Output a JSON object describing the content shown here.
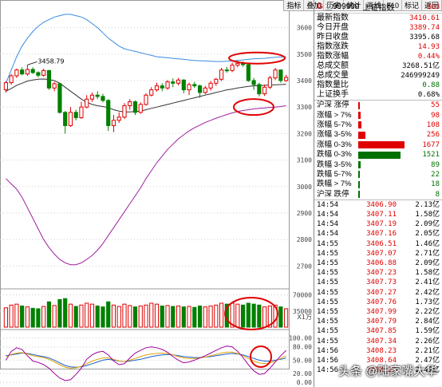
{
  "toolbar": [
    "指标",
    "叠加",
    "历史",
    "统计",
    "画线",
    "F10",
    "标记",
    "返回"
  ],
  "index_header": {
    "flag": "G",
    "sep": "三",
    "code": "999999",
    "name": "上证指数",
    "badge": "$G3"
  },
  "summary": [
    {
      "label": "最新指数",
      "value": "3410.61",
      "color": "red"
    },
    {
      "label": "今日开盘",
      "value": "3389.74",
      "color": "red"
    },
    {
      "label": "昨日收盘",
      "value": "3395.68",
      "color": "black"
    },
    {
      "label": "指数涨跌",
      "value": "14.93",
      "color": "red"
    },
    {
      "label": "指数涨幅",
      "value": "0.44%",
      "color": "red"
    },
    {
      "label": "总成交额",
      "value": "3268.51亿",
      "color": "black"
    },
    {
      "label": "总成交量",
      "value": "246999249",
      "color": "black"
    },
    {
      "label": "指数量比",
      "value": "0.88",
      "color": "green"
    },
    {
      "label": "上证换手",
      "value": "0.68%",
      "color": "black"
    }
  ],
  "distribution": [
    {
      "label": "沪深 涨停",
      "count": 55,
      "color": "#e00000"
    },
    {
      "label": "涨幅 > 7%",
      "count": 98,
      "color": "#e00000"
    },
    {
      "label": "涨幅 5-7%",
      "count": 108,
      "color": "#e00000"
    },
    {
      "label": "涨幅 3-5%",
      "count": 256,
      "color": "#e00000"
    },
    {
      "label": "涨幅 0-3%",
      "count": 1677,
      "color": "#e00000"
    },
    {
      "label": "跌幅 0-3%",
      "count": 1521,
      "color": "#007000"
    },
    {
      "label": "跌幅 3-5%",
      "count": 89,
      "color": "#007000"
    },
    {
      "label": "跌幅 5-7%",
      "count": 22,
      "color": "#007000"
    },
    {
      "label": "跌幅 > 7%",
      "count": 18,
      "color": "#007000"
    },
    {
      "label": "沪深 跌停",
      "count": 8,
      "color": "#007000"
    }
  ],
  "ticks": [
    {
      "time": "14:54",
      "price": "3406.90",
      "vol": "2.13亿"
    },
    {
      "time": "14:54",
      "price": "3407.11",
      "vol": "1.58亿"
    },
    {
      "time": "14:54",
      "price": "3407.19",
      "vol": "2.09亿"
    },
    {
      "time": "14:54",
      "price": "3407.16",
      "vol": "2.05亿"
    },
    {
      "time": "14:55",
      "price": "3406.51",
      "vol": "1.46亿"
    },
    {
      "time": "14:55",
      "price": "3407.07",
      "vol": "2.71亿"
    },
    {
      "time": "14:55",
      "price": "3406.88",
      "vol": "2.09亿"
    },
    {
      "time": "14:55",
      "price": "3407.23",
      "vol": "1.58亿"
    },
    {
      "time": "14:55",
      "price": "3407.73",
      "vol": "2.41亿"
    },
    {
      "time": "14:55",
      "price": "3407.27",
      "vol": "2.42亿"
    },
    {
      "time": "14:55",
      "price": "3407.76",
      "vol": "1.73亿"
    },
    {
      "time": "14:55",
      "price": "3407.99",
      "vol": "2.22亿"
    },
    {
      "time": "14:55",
      "price": "3407.79",
      "vol": "2.84亿"
    },
    {
      "time": "14:55",
      "price": "3407.85",
      "vol": "1.59亿"
    },
    {
      "time": "14:55",
      "price": "3407.34",
      "vol": "2.26亿"
    },
    {
      "time": "14:56",
      "price": "3408.23",
      "vol": "2.21亿"
    },
    {
      "time": "14:56",
      "price": "3408.64",
      "vol": "2.47亿"
    },
    {
      "time": "14:56",
      "price": "3408.23",
      "vol": "2.47亿"
    }
  ],
  "chart_data": [
    {
      "type": "candlestick",
      "title": "",
      "y_ticks": [
        2700,
        2800,
        2900,
        3000,
        3100,
        3200,
        3300,
        3400,
        3500,
        3600
      ],
      "ylim": [
        2650,
        3680
      ],
      "annotation": "3458.79",
      "candles": [
        {
          "o": 3365,
          "c": 3392,
          "h": 3398,
          "l": 3355,
          "up": true
        },
        {
          "o": 3392,
          "c": 3418,
          "h": 3425,
          "l": 3385,
          "up": true
        },
        {
          "o": 3418,
          "c": 3440,
          "h": 3445,
          "l": 3410,
          "up": true
        },
        {
          "o": 3440,
          "c": 3425,
          "h": 3450,
          "l": 3420,
          "up": false
        },
        {
          "o": 3425,
          "c": 3442,
          "h": 3459,
          "l": 3418,
          "up": true
        },
        {
          "o": 3442,
          "c": 3430,
          "h": 3450,
          "l": 3425,
          "up": false
        },
        {
          "o": 3430,
          "c": 3420,
          "h": 3435,
          "l": 3412,
          "up": false
        },
        {
          "o": 3420,
          "c": 3438,
          "h": 3445,
          "l": 3415,
          "up": true
        },
        {
          "o": 3438,
          "c": 3372,
          "h": 3440,
          "l": 3365,
          "up": false
        },
        {
          "o": 3372,
          "c": 3388,
          "h": 3395,
          "l": 3360,
          "up": true
        },
        {
          "o": 3388,
          "c": 3280,
          "h": 3392,
          "l": 3275,
          "up": false
        },
        {
          "o": 3280,
          "c": 3230,
          "h": 3285,
          "l": 3200,
          "up": false
        },
        {
          "o": 3230,
          "c": 3280,
          "h": 3300,
          "l": 3225,
          "up": true
        },
        {
          "o": 3280,
          "c": 3260,
          "h": 3290,
          "l": 3250,
          "up": false
        },
        {
          "o": 3260,
          "c": 3300,
          "h": 3320,
          "l": 3255,
          "up": true
        },
        {
          "o": 3300,
          "c": 3330,
          "h": 3345,
          "l": 3295,
          "up": true
        },
        {
          "o": 3330,
          "c": 3345,
          "h": 3355,
          "l": 3320,
          "up": true
        },
        {
          "o": 3345,
          "c": 3340,
          "h": 3360,
          "l": 3330,
          "up": false
        },
        {
          "o": 3340,
          "c": 3325,
          "h": 3350,
          "l": 3318,
          "up": false
        },
        {
          "o": 3325,
          "c": 3230,
          "h": 3330,
          "l": 3210,
          "up": false
        },
        {
          "o": 3230,
          "c": 3250,
          "h": 3270,
          "l": 3205,
          "up": true
        },
        {
          "o": 3250,
          "c": 3262,
          "h": 3280,
          "l": 3240,
          "up": true
        },
        {
          "o": 3262,
          "c": 3305,
          "h": 3315,
          "l": 3255,
          "up": true
        },
        {
          "o": 3305,
          "c": 3320,
          "h": 3330,
          "l": 3290,
          "up": true
        },
        {
          "o": 3320,
          "c": 3280,
          "h": 3325,
          "l": 3270,
          "up": false
        },
        {
          "o": 3280,
          "c": 3310,
          "h": 3318,
          "l": 3275,
          "up": true
        },
        {
          "o": 3310,
          "c": 3345,
          "h": 3352,
          "l": 3305,
          "up": true
        },
        {
          "o": 3345,
          "c": 3365,
          "h": 3375,
          "l": 3340,
          "up": true
        },
        {
          "o": 3365,
          "c": 3380,
          "h": 3392,
          "l": 3358,
          "up": true
        },
        {
          "o": 3380,
          "c": 3372,
          "h": 3390,
          "l": 3360,
          "up": false
        },
        {
          "o": 3372,
          "c": 3395,
          "h": 3402,
          "l": 3365,
          "up": true
        },
        {
          "o": 3395,
          "c": 3390,
          "h": 3408,
          "l": 3375,
          "up": false
        },
        {
          "o": 3390,
          "c": 3402,
          "h": 3410,
          "l": 3382,
          "up": true
        },
        {
          "o": 3402,
          "c": 3365,
          "h": 3405,
          "l": 3352,
          "up": false
        },
        {
          "o": 3365,
          "c": 3385,
          "h": 3392,
          "l": 3345,
          "up": true
        },
        {
          "o": 3385,
          "c": 3380,
          "h": 3395,
          "l": 3372,
          "up": false
        },
        {
          "o": 3380,
          "c": 3355,
          "h": 3385,
          "l": 3335,
          "up": false
        },
        {
          "o": 3355,
          "c": 3372,
          "h": 3380,
          "l": 3348,
          "up": true
        },
        {
          "o": 3372,
          "c": 3390,
          "h": 3398,
          "l": 3362,
          "up": true
        },
        {
          "o": 3390,
          "c": 3405,
          "h": 3410,
          "l": 3380,
          "up": true
        },
        {
          "o": 3405,
          "c": 3440,
          "h": 3448,
          "l": 3398,
          "up": true
        },
        {
          "o": 3440,
          "c": 3438,
          "h": 3452,
          "l": 3430,
          "up": false
        },
        {
          "o": 3438,
          "c": 3458,
          "h": 3468,
          "l": 3432,
          "up": true
        },
        {
          "o": 3458,
          "c": 3465,
          "h": 3475,
          "l": 3450,
          "up": true
        },
        {
          "o": 3465,
          "c": 3460,
          "h": 3472,
          "l": 3452,
          "up": false
        },
        {
          "o": 3460,
          "c": 3400,
          "h": 3462,
          "l": 3395,
          "up": false
        },
        {
          "o": 3400,
          "c": 3385,
          "h": 3410,
          "l": 3365,
          "up": false
        },
        {
          "o": 3385,
          "c": 3350,
          "h": 3392,
          "l": 3340,
          "up": false
        },
        {
          "o": 3350,
          "c": 3375,
          "h": 3385,
          "l": 3342,
          "up": true
        },
        {
          "o": 3375,
          "c": 3410,
          "h": 3418,
          "l": 3368,
          "up": true
        },
        {
          "o": 3410,
          "c": 3440,
          "h": 3448,
          "l": 3402,
          "up": true
        },
        {
          "o": 3440,
          "c": 3400,
          "h": 3442,
          "l": 3392,
          "up": false
        },
        {
          "o": 3400,
          "c": 3412,
          "h": 3422,
          "l": 3395,
          "up": true
        }
      ],
      "boll_upper": [
        3390,
        3440,
        3490,
        3530,
        3560,
        3585,
        3605,
        3620,
        3630,
        3640,
        3645,
        3650,
        3650,
        3645,
        3640,
        3630,
        3615,
        3600,
        3580,
        3560,
        3545,
        3530,
        3520,
        3515,
        3510,
        3505,
        3500,
        3495,
        3490,
        3488,
        3486,
        3484,
        3482,
        3480,
        3478,
        3476,
        3475,
        3474,
        3473,
        3472,
        3472,
        3473,
        3474,
        3476,
        3478,
        3480,
        3482,
        3483,
        3484,
        3486,
        3488,
        3489,
        3490
      ],
      "boll_mid": [
        3360,
        3370,
        3382,
        3390,
        3398,
        3402,
        3405,
        3406,
        3404,
        3400,
        3390,
        3375,
        3360,
        3345,
        3330,
        3318,
        3310,
        3305,
        3302,
        3298,
        3290,
        3285,
        3282,
        3282,
        3283,
        3285,
        3290,
        3295,
        3300,
        3305,
        3310,
        3315,
        3320,
        3325,
        3330,
        3335,
        3340,
        3345,
        3350,
        3355,
        3360,
        3365,
        3368,
        3372,
        3375,
        3378,
        3380,
        3381,
        3382,
        3383,
        3384,
        3385,
        3386
      ],
      "boll_lower": [
        3030,
        3010,
        2990,
        2960,
        2920,
        2880,
        2840,
        2800,
        2770,
        2745,
        2725,
        2712,
        2705,
        2705,
        2712,
        2725,
        2740,
        2760,
        2785,
        2815,
        2845,
        2875,
        2905,
        2935,
        2965,
        2995,
        3030,
        3060,
        3090,
        3115,
        3140,
        3160,
        3180,
        3195,
        3210,
        3222,
        3232,
        3242,
        3250,
        3258,
        3265,
        3272,
        3278,
        3283,
        3287,
        3290,
        3293,
        3295,
        3297,
        3299,
        3300,
        3302,
        3305
      ]
    },
    {
      "type": "bar",
      "y_ticks": [
        70000,
        35000
      ],
      "unit_label": "X1万",
      "colors_by_candle": true,
      "values": [
        42000,
        48000,
        50000,
        46000,
        44000,
        41000,
        40000,
        45000,
        55000,
        47000,
        60000,
        62000,
        50000,
        45000,
        48000,
        52000,
        50000,
        46000,
        44000,
        55000,
        48000,
        45000,
        50000,
        47000,
        44000,
        46000,
        48000,
        52000,
        50000,
        46000,
        47000,
        45000,
        46000,
        44000,
        45000,
        43000,
        46000,
        44000,
        46000,
        48000,
        52000,
        50000,
        52000,
        50000,
        48000,
        52000,
        50000,
        48000,
        44000,
        46000,
        48000,
        44000,
        40000
      ]
    },
    {
      "type": "line",
      "y_ticks": [
        100.0,
        80.0,
        50.0,
        20.0,
        0.0
      ],
      "ylim": [
        -5,
        110
      ],
      "series": [
        {
          "color": "#1a5fd0",
          "values": [
            60,
            62,
            64,
            66,
            65,
            63,
            60,
            58,
            55,
            50,
            44,
            38,
            35,
            34,
            35,
            38,
            42,
            46,
            50,
            52,
            50,
            48,
            47,
            48,
            50,
            52,
            55,
            58,
            60,
            62,
            63,
            62,
            60,
            58,
            57,
            56,
            56,
            57,
            58,
            60,
            62,
            64,
            65,
            64,
            62,
            58,
            54,
            50,
            48,
            48,
            50,
            52,
            55
          ]
        },
        {
          "color": "#e0a000",
          "values": [
            58,
            63,
            66,
            67,
            64,
            60,
            58,
            56,
            52,
            46,
            40,
            34,
            32,
            33,
            36,
            42,
            48,
            52,
            55,
            55,
            52,
            48,
            47,
            50,
            54,
            58,
            62,
            64,
            65,
            66,
            65,
            62,
            58,
            55,
            54,
            54,
            55,
            57,
            60,
            63,
            66,
            68,
            68,
            65,
            60,
            54,
            48,
            44,
            42,
            44,
            48,
            54,
            60
          ]
        },
        {
          "color": "#a000a0",
          "values": [
            50,
            70,
            78,
            74,
            60,
            48,
            45,
            40,
            32,
            20,
            10,
            4,
            6,
            18,
            32,
            52,
            62,
            68,
            70,
            62,
            48,
            40,
            42,
            55,
            66,
            72,
            78,
            80,
            78,
            74,
            68,
            58,
            50,
            44,
            46,
            50,
            55,
            60,
            66,
            72,
            78,
            82,
            80,
            70,
            56,
            40,
            26,
            18,
            20,
            32,
            46,
            60,
            72
          ]
        }
      ]
    }
  ],
  "watermark": "头条 @陆家嘴大华"
}
